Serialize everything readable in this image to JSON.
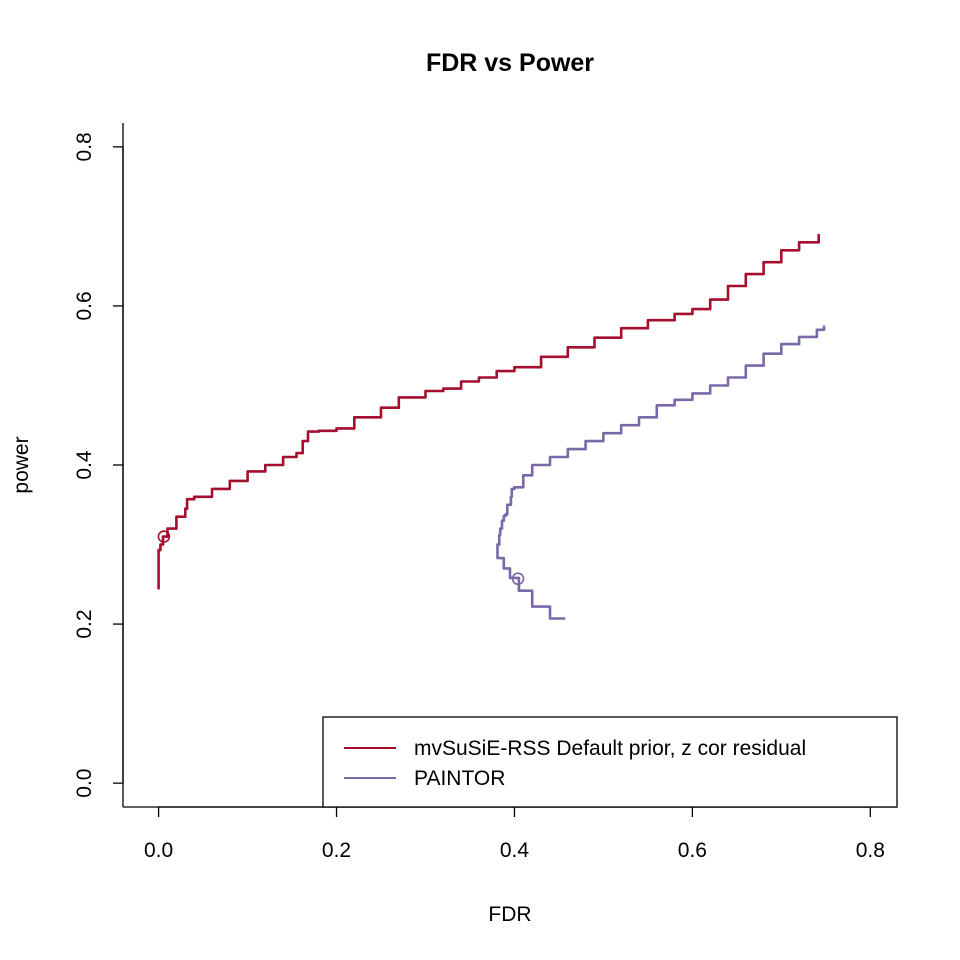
{
  "chart_data": {
    "type": "line",
    "title": "FDR vs Power",
    "xlabel": "FDR",
    "ylabel": "power",
    "xlim": [
      -0.04,
      0.83
    ],
    "ylim": [
      -0.03,
      0.83
    ],
    "xticks": [
      0.0,
      0.2,
      0.4,
      0.6,
      0.8
    ],
    "xtick_labels": [
      "0.0",
      "0.2",
      "0.4",
      "0.6",
      "0.8"
    ],
    "yticks": [
      0.0,
      0.2,
      0.4,
      0.6,
      0.8
    ],
    "ytick_labels": [
      "0.0",
      "0.2",
      "0.4",
      "0.6",
      "0.8"
    ],
    "grid": false,
    "legend_position": "bottom-right",
    "series": [
      {
        "name": "mvSuSiE-RSS Default prior, z cor residual",
        "color": "#A50F2D",
        "x": [
          0.0,
          0.0,
          0.002,
          0.005,
          0.01,
          0.02,
          0.03,
          0.032,
          0.04,
          0.06,
          0.08,
          0.1,
          0.12,
          0.14,
          0.155,
          0.162,
          0.168,
          0.18,
          0.2,
          0.22,
          0.25,
          0.27,
          0.3,
          0.32,
          0.34,
          0.36,
          0.38,
          0.4,
          0.43,
          0.46,
          0.49,
          0.52,
          0.55,
          0.58,
          0.6,
          0.62,
          0.64,
          0.66,
          0.68,
          0.7,
          0.72,
          0.742
        ],
        "y": [
          0.245,
          0.293,
          0.3,
          0.31,
          0.32,
          0.335,
          0.345,
          0.357,
          0.36,
          0.37,
          0.38,
          0.392,
          0.4,
          0.41,
          0.415,
          0.43,
          0.442,
          0.443,
          0.446,
          0.46,
          0.472,
          0.485,
          0.493,
          0.496,
          0.505,
          0.51,
          0.518,
          0.523,
          0.536,
          0.548,
          0.56,
          0.572,
          0.582,
          0.59,
          0.596,
          0.608,
          0.625,
          0.64,
          0.655,
          0.67,
          0.68,
          0.689
        ],
        "marker_points": [
          [
            0.006,
            0.31
          ]
        ]
      },
      {
        "name": "PAINTOR",
        "color": "#7B68A9",
        "x": [
          0.456,
          0.44,
          0.42,
          0.405,
          0.395,
          0.388,
          0.381,
          0.383,
          0.384,
          0.386,
          0.388,
          0.39,
          0.392,
          0.396,
          0.397,
          0.4,
          0.41,
          0.42,
          0.44,
          0.46,
          0.48,
          0.5,
          0.52,
          0.54,
          0.56,
          0.58,
          0.6,
          0.62,
          0.64,
          0.66,
          0.68,
          0.7,
          0.72,
          0.74,
          0.748
        ],
        "y": [
          0.207,
          0.222,
          0.242,
          0.258,
          0.27,
          0.283,
          0.3,
          0.312,
          0.32,
          0.33,
          0.336,
          0.338,
          0.35,
          0.36,
          0.37,
          0.372,
          0.387,
          0.4,
          0.41,
          0.42,
          0.43,
          0.44,
          0.45,
          0.46,
          0.475,
          0.482,
          0.49,
          0.5,
          0.51,
          0.525,
          0.54,
          0.552,
          0.561,
          0.57,
          0.574
        ],
        "marker_points": [
          [
            0.404,
            0.257
          ]
        ]
      }
    ]
  }
}
